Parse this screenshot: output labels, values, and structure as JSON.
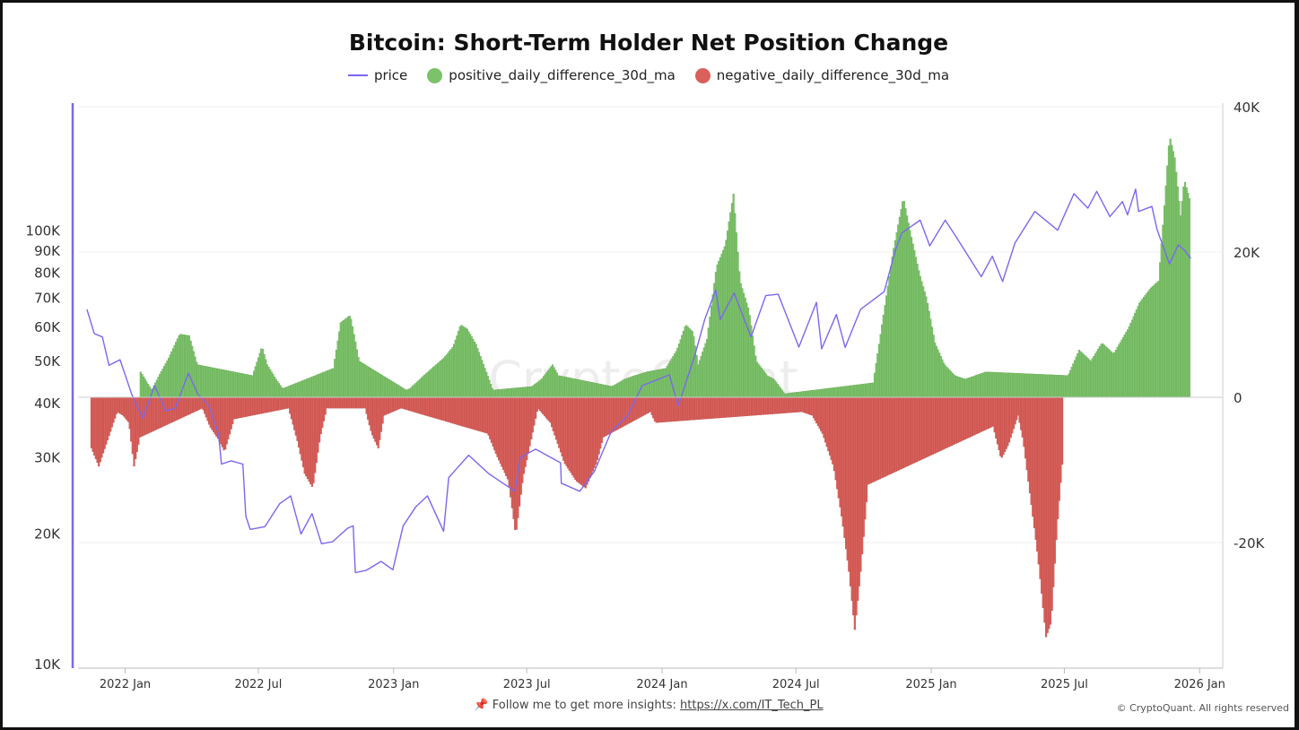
{
  "chart_data": {
    "type": "bar",
    "title": "Bitcoin: Short-Term Holder Net Position Change",
    "legend": {
      "placement": "top-center",
      "items": [
        {
          "label": "price",
          "symbol": "line",
          "color": "#7b68ee"
        },
        {
          "label": "positive_daily_difference_30d_ma",
          "symbol": "dot",
          "color": "#7cc26a"
        },
        {
          "label": "negative_daily_difference_30d_ma",
          "symbol": "dot",
          "color": "#d9605b"
        }
      ]
    },
    "colors": {
      "price": "#7b68ee",
      "positive": "#7cc26a",
      "negative": "#d9605b"
    },
    "grid": true,
    "watermark": "CryptoQuant",
    "x_axis": {
      "type": "date",
      "range": [
        "2021-11-15",
        "2026-01-08"
      ],
      "ticks": [
        {
          "date": "2022-01-01",
          "label": "2022 Jan"
        },
        {
          "date": "2022-07-01",
          "label": "2022 Jul"
        },
        {
          "date": "2023-01-01",
          "label": "2023 Jan"
        },
        {
          "date": "2023-07-01",
          "label": "2023 Jul"
        },
        {
          "date": "2024-01-01",
          "label": "2024 Jan"
        },
        {
          "date": "2024-07-01",
          "label": "2024 Jul"
        },
        {
          "date": "2025-01-01",
          "label": "2025 Jan"
        },
        {
          "date": "2025-07-01",
          "label": "2025 Jul"
        },
        {
          "date": "2026-01-01",
          "label": "2026 Jan"
        }
      ]
    },
    "y_left": {
      "scale": "log",
      "range": [
        10000,
        190000
      ],
      "ticks": [
        {
          "value": 10000,
          "label": "10K"
        },
        {
          "value": 20000,
          "label": "20K"
        },
        {
          "value": 30000,
          "label": "30K"
        },
        {
          "value": 40000,
          "label": "40K"
        },
        {
          "value": 50000,
          "label": "50K"
        },
        {
          "value": 60000,
          "label": "60K"
        },
        {
          "value": 70000,
          "label": "70K"
        },
        {
          "value": 80000,
          "label": "80K"
        },
        {
          "value": 90000,
          "label": "90K"
        },
        {
          "value": 100000,
          "label": "100K"
        }
      ]
    },
    "y_right": {
      "scale": "linear",
      "range": [
        -37000,
        40000
      ],
      "ticks": [
        {
          "value": 40000,
          "label": "40K"
        },
        {
          "value": 20000,
          "label": "20K"
        },
        {
          "value": 0,
          "label": "0"
        },
        {
          "value": -20000,
          "label": "-20K"
        }
      ]
    },
    "series": [
      {
        "name": "price",
        "type": "line",
        "axis": "left",
        "points": [
          [
            "2021-11-10",
            66000
          ],
          [
            "2021-11-20",
            58000
          ],
          [
            "2021-12-01",
            57000
          ],
          [
            "2021-12-10",
            49000
          ],
          [
            "2021-12-25",
            50500
          ],
          [
            "2022-01-10",
            42000
          ],
          [
            "2022-01-25",
            37000
          ],
          [
            "2022-02-10",
            44000
          ],
          [
            "2022-02-25",
            38500
          ],
          [
            "2022-03-10",
            39000
          ],
          [
            "2022-03-28",
            47000
          ],
          [
            "2022-04-10",
            42000
          ],
          [
            "2022-04-25",
            39500
          ],
          [
            "2022-05-08",
            34000
          ],
          [
            "2022-05-12",
            29000
          ],
          [
            "2022-05-25",
            29500
          ],
          [
            "2022-06-10",
            29000
          ],
          [
            "2022-06-14",
            22000
          ],
          [
            "2022-06-20",
            20500
          ],
          [
            "2022-07-10",
            20800
          ],
          [
            "2022-07-30",
            23500
          ],
          [
            "2022-08-14",
            24500
          ],
          [
            "2022-08-28",
            20000
          ],
          [
            "2022-09-12",
            22300
          ],
          [
            "2022-09-25",
            19000
          ],
          [
            "2022-10-10",
            19200
          ],
          [
            "2022-10-30",
            20600
          ],
          [
            "2022-11-07",
            20900
          ],
          [
            "2022-11-10",
            16300
          ],
          [
            "2022-11-25",
            16500
          ],
          [
            "2022-12-15",
            17300
          ],
          [
            "2022-12-31",
            16550
          ],
          [
            "2023-01-14",
            20900
          ],
          [
            "2023-01-31",
            23100
          ],
          [
            "2023-02-16",
            24500
          ],
          [
            "2023-03-10",
            20300
          ],
          [
            "2023-03-17",
            27000
          ],
          [
            "2023-04-13",
            30400
          ],
          [
            "2023-05-10",
            27600
          ],
          [
            "2023-06-15",
            25100
          ],
          [
            "2023-06-22",
            30000
          ],
          [
            "2023-07-13",
            31400
          ],
          [
            "2023-08-16",
            29200
          ],
          [
            "2023-08-17",
            26200
          ],
          [
            "2023-09-11",
            25100
          ],
          [
            "2023-10-01",
            27900
          ],
          [
            "2023-10-24",
            34500
          ],
          [
            "2023-11-15",
            37500
          ],
          [
            "2023-12-05",
            44000
          ],
          [
            "2024-01-11",
            46600
          ],
          [
            "2024-01-23",
            39500
          ],
          [
            "2024-02-15",
            52000
          ],
          [
            "2024-02-28",
            62500
          ],
          [
            "2024-03-14",
            73100
          ],
          [
            "2024-03-20",
            62500
          ],
          [
            "2024-04-08",
            72000
          ],
          [
            "2024-05-01",
            57000
          ],
          [
            "2024-05-21",
            71000
          ],
          [
            "2024-06-07",
            71500
          ],
          [
            "2024-06-24",
            60300
          ],
          [
            "2024-07-05",
            54000
          ],
          [
            "2024-07-29",
            68500
          ],
          [
            "2024-08-05",
            53500
          ],
          [
            "2024-08-25",
            64200
          ],
          [
            "2024-09-06",
            53900
          ],
          [
            "2024-09-27",
            66000
          ],
          [
            "2024-10-29",
            72500
          ],
          [
            "2024-11-13",
            90000
          ],
          [
            "2024-11-22",
            99000
          ],
          [
            "2024-12-17",
            106000
          ],
          [
            "2024-12-30",
            92500
          ],
          [
            "2025-01-20",
            106000
          ],
          [
            "2025-02-03",
            97500
          ],
          [
            "2025-02-27",
            84000
          ],
          [
            "2025-03-10",
            78500
          ],
          [
            "2025-03-25",
            87500
          ],
          [
            "2025-04-08",
            76500
          ],
          [
            "2025-04-25",
            94000
          ],
          [
            "2025-05-22",
            111000
          ],
          [
            "2025-06-22",
            100500
          ],
          [
            "2025-07-14",
            122000
          ],
          [
            "2025-08-02",
            113000
          ],
          [
            "2025-08-14",
            123500
          ],
          [
            "2025-09-01",
            108000
          ],
          [
            "2025-09-18",
            117000
          ],
          [
            "2025-09-25",
            109000
          ],
          [
            "2025-10-06",
            125000
          ],
          [
            "2025-10-10",
            111000
          ],
          [
            "2025-10-28",
            114000
          ],
          [
            "2025-11-04",
            101000
          ],
          [
            "2025-11-21",
            84000
          ],
          [
            "2025-12-03",
            93000
          ],
          [
            "2025-12-12",
            90000
          ],
          [
            "2025-12-20",
            86500
          ]
        ]
      },
      {
        "name": "positive_daily_difference_30d_ma",
        "type": "bar",
        "axis": "right",
        "points": [
          [
            "2022-01-21",
            3500
          ],
          [
            "2022-02-05",
            1000
          ],
          [
            "2022-02-15",
            3000
          ],
          [
            "2022-02-27",
            5200
          ],
          [
            "2022-03-15",
            8700
          ],
          [
            "2022-03-28",
            8500
          ],
          [
            "2022-04-08",
            4500
          ],
          [
            "2022-06-22",
            3000
          ],
          [
            "2022-07-05",
            7000
          ],
          [
            "2022-07-12",
            4500
          ],
          [
            "2022-07-24",
            2500
          ],
          [
            "2022-08-02",
            1200
          ],
          [
            "2022-10-10",
            4000
          ],
          [
            "2022-10-20",
            10300
          ],
          [
            "2022-11-02",
            11300
          ],
          [
            "2022-11-14",
            5000
          ],
          [
            "2023-01-17",
            1000
          ],
          [
            "2023-01-22",
            1200
          ],
          [
            "2023-02-10",
            3000
          ],
          [
            "2023-03-10",
            5500
          ],
          [
            "2023-03-22",
            7000
          ],
          [
            "2023-04-01",
            10000
          ],
          [
            "2023-04-10",
            9400
          ],
          [
            "2023-04-22",
            7300
          ],
          [
            "2023-05-15",
            1000
          ],
          [
            "2023-07-07",
            1500
          ],
          [
            "2023-07-20",
            2500
          ],
          [
            "2023-08-04",
            4500
          ],
          [
            "2023-08-12",
            3000
          ],
          [
            "2023-10-24",
            1500
          ],
          [
            "2023-11-10",
            2500
          ],
          [
            "2023-11-24",
            3000
          ],
          [
            "2023-12-10",
            3500
          ],
          [
            "2024-01-05",
            4000
          ],
          [
            "2024-01-20",
            6500
          ],
          [
            "2024-02-01",
            10000
          ],
          [
            "2024-02-11",
            9000
          ],
          [
            "2024-02-18",
            4500
          ],
          [
            "2024-03-01",
            8000
          ],
          [
            "2024-03-14",
            18000
          ],
          [
            "2024-03-26",
            21000
          ],
          [
            "2024-04-06",
            28000
          ],
          [
            "2024-04-15",
            16000
          ],
          [
            "2024-04-27",
            12000
          ],
          [
            "2024-05-07",
            5000
          ],
          [
            "2024-05-22",
            3000
          ],
          [
            "2024-05-31",
            2500
          ],
          [
            "2024-06-15",
            500
          ],
          [
            "2024-10-13",
            2000
          ],
          [
            "2024-10-25",
            10000
          ],
          [
            "2024-11-09",
            20000
          ],
          [
            "2024-11-23",
            27500
          ],
          [
            "2024-12-03",
            22500
          ],
          [
            "2024-12-15",
            17000
          ],
          [
            "2024-12-25",
            13500
          ],
          [
            "2025-01-05",
            7500
          ],
          [
            "2025-01-18",
            4500
          ],
          [
            "2025-02-01",
            3000
          ],
          [
            "2025-02-15",
            2500
          ],
          [
            "2025-03-01",
            3000
          ],
          [
            "2025-03-15",
            3500
          ],
          [
            "2025-07-05",
            3000
          ],
          [
            "2025-07-20",
            6500
          ],
          [
            "2025-08-05",
            5000
          ],
          [
            "2025-08-20",
            7500
          ],
          [
            "2025-09-05",
            6000
          ],
          [
            "2025-09-25",
            9500
          ],
          [
            "2025-10-10",
            13000
          ],
          [
            "2025-10-25",
            15000
          ],
          [
            "2025-11-05",
            16000
          ],
          [
            "2025-11-12",
            25000
          ],
          [
            "2025-11-20",
            36000
          ],
          [
            "2025-11-27",
            33000
          ],
          [
            "2025-12-05",
            25000
          ],
          [
            "2025-12-10",
            30000
          ],
          [
            "2025-12-18",
            27000
          ]
        ]
      },
      {
        "name": "negative_daily_difference_30d_ma",
        "type": "bar",
        "axis": "right",
        "points": [
          [
            "2021-11-15",
            -7000
          ],
          [
            "2021-11-25",
            -9500
          ],
          [
            "2021-12-05",
            -6500
          ],
          [
            "2021-12-20",
            -2000
          ],
          [
            "2021-12-28",
            -2500
          ],
          [
            "2022-01-05",
            -3500
          ],
          [
            "2022-01-12",
            -9500
          ],
          [
            "2022-01-20",
            -5500
          ],
          [
            "2022-04-15",
            -1500
          ],
          [
            "2022-04-25",
            -4000
          ],
          [
            "2022-05-08",
            -6000
          ],
          [
            "2022-05-15",
            -7500
          ],
          [
            "2022-05-28",
            -3000
          ],
          [
            "2022-08-10",
            -1500
          ],
          [
            "2022-08-22",
            -6000
          ],
          [
            "2022-09-01",
            -10500
          ],
          [
            "2022-09-12",
            -12500
          ],
          [
            "2022-09-22",
            -5500
          ],
          [
            "2022-10-01",
            -1500
          ],
          [
            "2022-11-22",
            -1500
          ],
          [
            "2022-12-01",
            -5000
          ],
          [
            "2022-12-10",
            -7000
          ],
          [
            "2022-12-18",
            -2500
          ],
          [
            "2023-01-10",
            -1500
          ],
          [
            "2023-05-08",
            -5000
          ],
          [
            "2023-05-20",
            -8000
          ],
          [
            "2023-06-05",
            -11500
          ],
          [
            "2023-06-15",
            -19000
          ],
          [
            "2023-06-25",
            -11000
          ],
          [
            "2023-07-15",
            -1500
          ],
          [
            "2023-08-01",
            -3500
          ],
          [
            "2023-08-20",
            -9000
          ],
          [
            "2023-09-05",
            -11500
          ],
          [
            "2023-09-18",
            -12500
          ],
          [
            "2023-10-03",
            -9000
          ],
          [
            "2023-10-12",
            -5500
          ],
          [
            "2023-12-15",
            -2000
          ],
          [
            "2023-12-22",
            -3500
          ],
          [
            "2024-07-08",
            -2000
          ],
          [
            "2024-07-22",
            -2500
          ],
          [
            "2024-08-05",
            -5000
          ],
          [
            "2024-08-20",
            -9500
          ],
          [
            "2024-09-01",
            -17000
          ],
          [
            "2024-09-10",
            -24000
          ],
          [
            "2024-09-18",
            -32000
          ],
          [
            "2024-09-26",
            -24000
          ],
          [
            "2024-10-06",
            -12000
          ],
          [
            "2025-03-25",
            -4000
          ],
          [
            "2025-04-05",
            -8500
          ],
          [
            "2025-04-15",
            -6500
          ],
          [
            "2025-04-28",
            -2500
          ],
          [
            "2025-05-05",
            -6000
          ],
          [
            "2025-05-15",
            -14000
          ],
          [
            "2025-05-25",
            -22000
          ],
          [
            "2025-06-05",
            -33000
          ],
          [
            "2025-06-12",
            -31000
          ],
          [
            "2025-06-20",
            -18000
          ],
          [
            "2025-06-28",
            -8000
          ]
        ]
      }
    ]
  },
  "footer": {
    "pin_icon": "pin-icon",
    "text": "Follow me to get more insights: ",
    "link": "https://x.com/IT_Tech_PL",
    "copyright": "© CryptoQuant. All rights reserved"
  }
}
